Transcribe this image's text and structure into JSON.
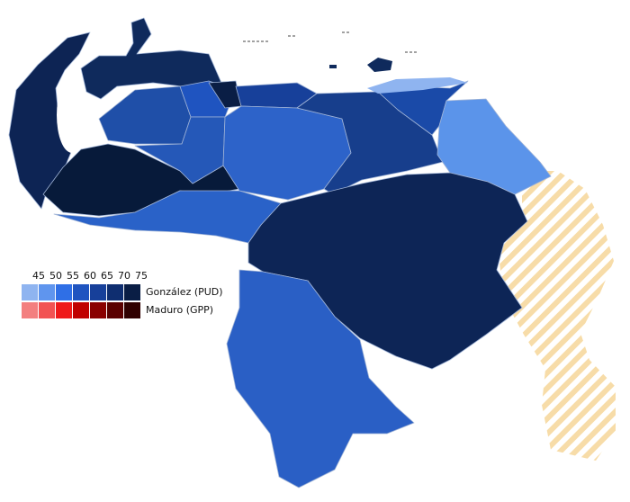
{
  "legend": {
    "ticks": [
      45,
      50,
      55,
      60,
      65,
      70,
      75
    ],
    "rows": [
      {
        "label": "González (PUD)",
        "colors": [
          "#8fb4f0",
          "#5f95ee",
          "#2f6fe6",
          "#1f54c0",
          "#17409a",
          "#0f2e70",
          "#0a1e45"
        ]
      },
      {
        "label": "Maduro (GPP)",
        "colors": [
          "#f37f7f",
          "#f25353",
          "#ef1a1a",
          "#c00000",
          "#8a0000",
          "#5a0000",
          "#300000"
        ]
      }
    ]
  }
}
